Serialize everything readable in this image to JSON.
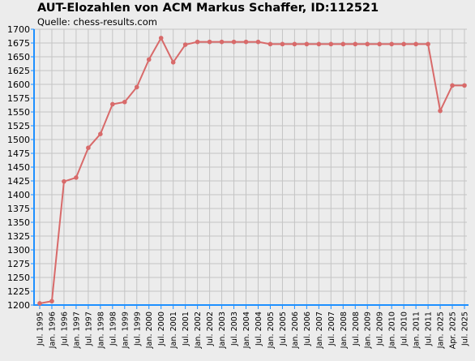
{
  "title": "AUT-Elozahlen von ACM Markus Schaffer, ID:112521",
  "subtitle": "Quelle: chess-results.com",
  "colors": {
    "background": "#ececec",
    "grid": "#c4c4c4",
    "axis": "#1e90ff",
    "series": "#d86a6a"
  },
  "chart_data": {
    "type": "line",
    "title": "AUT-Elozahlen von ACM Markus Schaffer, ID:112521",
    "subtitle": "Quelle: chess-results.com",
    "xlabel": "",
    "ylabel": "",
    "ylim": [
      1200,
      1700
    ],
    "ytick_step": 25,
    "yticks": [
      1200,
      1225,
      1250,
      1275,
      1300,
      1325,
      1350,
      1375,
      1400,
      1425,
      1450,
      1475,
      1500,
      1525,
      1550,
      1575,
      1600,
      1625,
      1650,
      1675,
      1700
    ],
    "grid": true,
    "legend": "none",
    "categories": [
      "Jul. 1995",
      "Jan. 1996",
      "Jul. 1996",
      "Jan. 1997",
      "Jul. 1997",
      "Jan. 1998",
      "Jul. 1998",
      "Jan. 1999",
      "Jul. 1999",
      "Jan. 2000",
      "Jul. 2000",
      "Jan. 2001",
      "Jul. 2001",
      "Jan. 2002",
      "Jul. 2002",
      "Jan. 2003",
      "Jul. 2003",
      "Jan. 2004",
      "Jul. 2004",
      "Jan. 2005",
      "Jul. 2005",
      "Jan. 2006",
      "Jul. 2006",
      "Jan. 2007",
      "Jul. 2007",
      "Jan. 2008",
      "Jul. 2008",
      "Jan. 2009",
      "Jul. 2009",
      "Jan. 2010",
      "Jul. 2010",
      "Jan. 2011",
      "Jul. 2011",
      "Jan. 2025",
      "Apr. 2025",
      "Jul. 2025"
    ],
    "series": [
      {
        "values": [
          1203,
          1207,
          1424,
          1431,
          1485,
          1510,
          1564,
          1568,
          1595,
          1645,
          1684,
          1640,
          1672,
          1677,
          1677,
          1677,
          1677,
          1677,
          1677,
          1673,
          1673,
          1673,
          1673,
          1673,
          1673,
          1673,
          1673,
          1673,
          1673,
          1673,
          1673,
          1673,
          1673,
          1552,
          1598,
          1598
        ]
      }
    ]
  }
}
